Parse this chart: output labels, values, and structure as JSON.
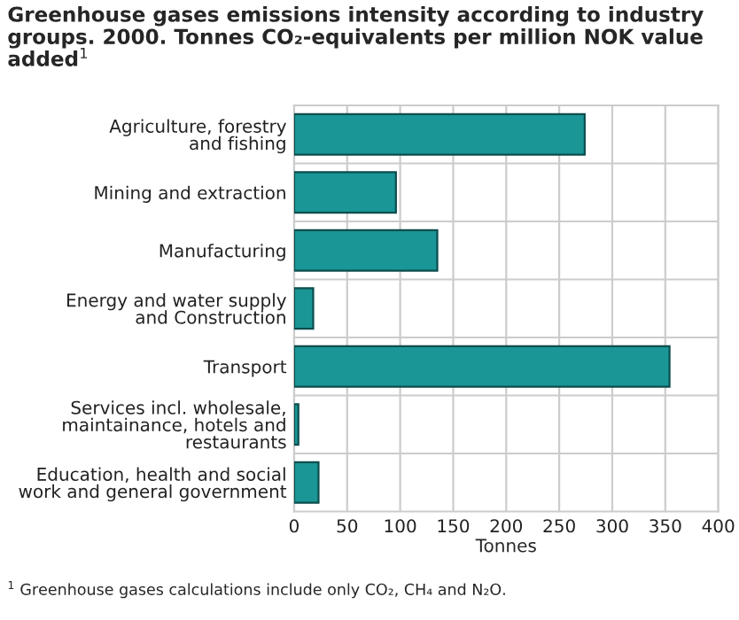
{
  "chart_data": {
    "type": "bar",
    "orientation": "horizontal",
    "title": "Greenhouse gases emissions intensity according to industry\ngroups. 2000. Tonnes CO₂-equivalents per million NOK value\nadded$^{1}$",
    "categories": [
      "Agriculture, forestry\nand fishing",
      "Mining and extraction",
      "Manufacturing",
      "Energy and water supply\nand Construction",
      "Transport",
      "Services incl. wholesale,\nmaintainance, hotels and\nrestaurants",
      "Education, health and social\nwork and general government"
    ],
    "values": [
      274,
      96,
      135,
      18,
      354,
      4,
      23
    ],
    "color": "#1a9696",
    "xlim": [
      0,
      400
    ],
    "xticks": [
      0,
      50,
      100,
      150,
      200,
      250,
      300,
      350,
      400
    ],
    "xlabel": "Tonnes",
    "grid": true,
    "annotations": [
      "$^{1}$ Greenhouse gases calculations include only CO₂, CH₄ and N₂O."
    ]
  }
}
